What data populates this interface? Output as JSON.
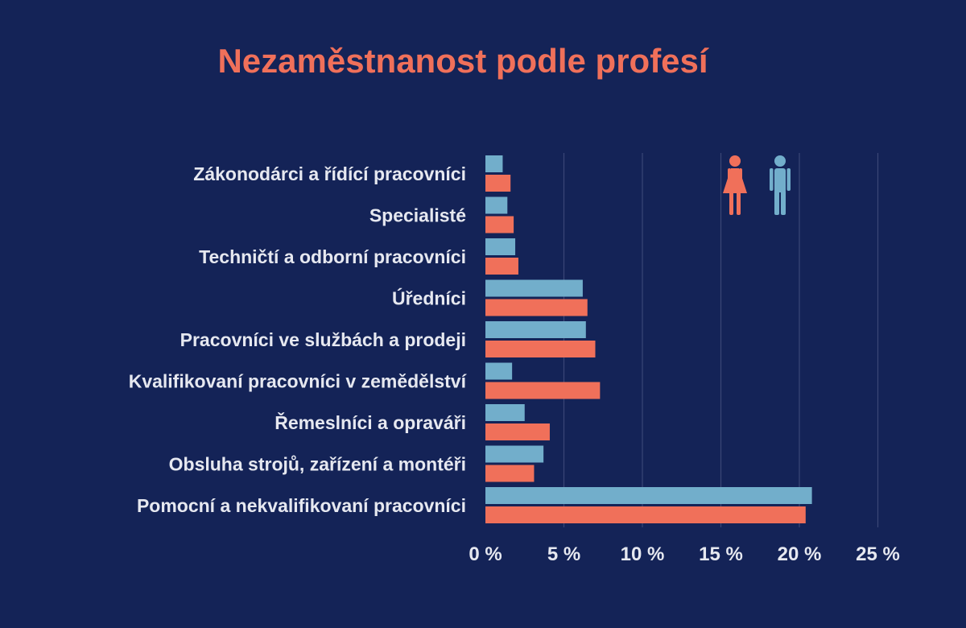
{
  "colors": {
    "background": "#142357",
    "title": "#F0705A",
    "men": "#72AECB",
    "women": "#F0705A",
    "grid": "#3A4776",
    "text": "#E6E8F0"
  },
  "legend_icons": {
    "women": "woman-icon",
    "men": "man-icon"
  },
  "chart_data": {
    "type": "bar",
    "orientation": "horizontal",
    "title": "Nezaměstnanost podle profesí",
    "categories": [
      "Zákonodárci a řídící pracovníci",
      "Specialisté",
      "Techničtí a odborní pracovníci",
      "Úředníci",
      "Pracovníci ve službách a prodeji",
      "Kvalifikovaní pracovníci v zemědělství",
      "Řemeslníci a opraváři",
      "Obsluha strojů, zařízení a montéři",
      "Pomocní a nekvalifikovaní pracovníci"
    ],
    "series": [
      {
        "key": "men",
        "values": [
          1.1,
          1.4,
          1.9,
          6.2,
          6.4,
          1.7,
          2.5,
          3.7,
          20.8
        ]
      },
      {
        "key": "women",
        "values": [
          1.6,
          1.8,
          2.1,
          6.5,
          7.0,
          7.3,
          4.1,
          3.1,
          20.4
        ]
      }
    ],
    "xlim": [
      0,
      25
    ],
    "xticks": [
      0,
      5,
      10,
      15,
      20,
      25
    ],
    "xtick_labels": [
      "0 %",
      "5 %",
      "10 %",
      "15 %",
      "20 %",
      "25 %"
    ],
    "grid": true,
    "legend": "top-right",
    "xlabel": "",
    "ylabel": ""
  }
}
